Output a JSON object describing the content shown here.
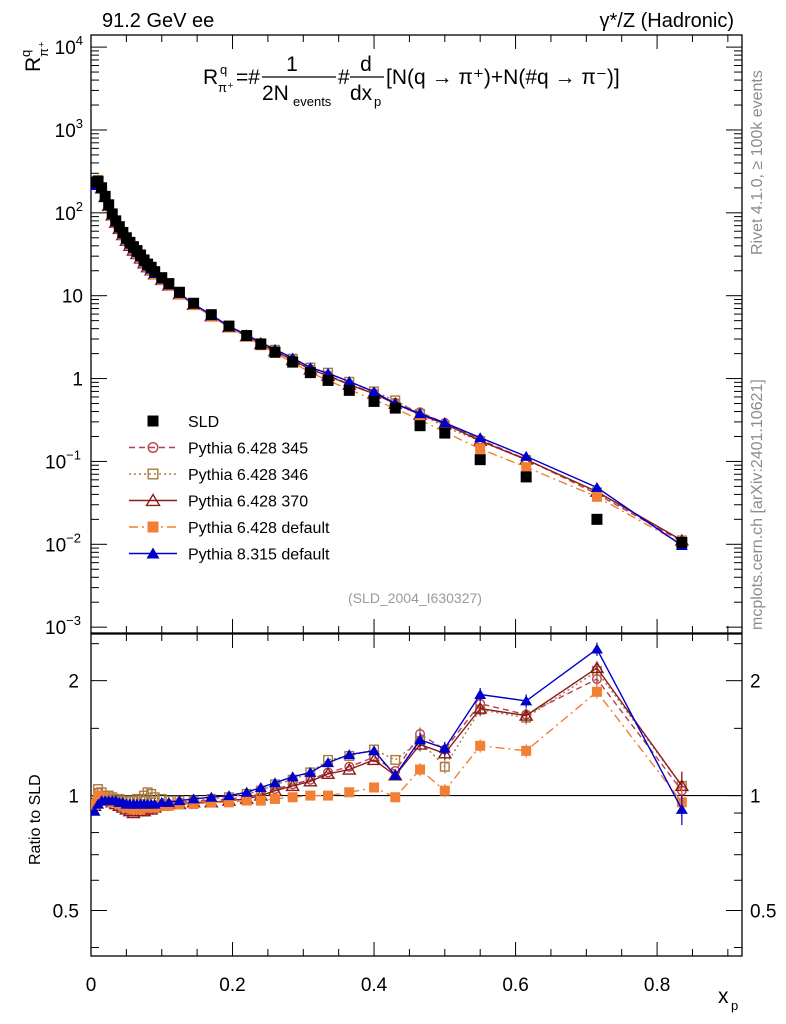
{
  "header": {
    "left": "91.2 GeV ee",
    "right": "γ*/Z (Hadronic)"
  },
  "side_labels": {
    "top": "Rivet 4.1.0, ≥ 100k events",
    "bottom": "mcplots.cern.ch [arXiv:2401.10621]"
  },
  "analysis_tag": "(SLD_2004_I630327)",
  "chart_data": {
    "type": "scatter",
    "title": "R^q_{π+} = 1/(2N_events) d/dx_p [N(q → π+) + N(q̄ → π-)]",
    "formula": {
      "r": "R",
      "r_sup": "q",
      "r_sub": "π⁺",
      "eq": "=#",
      "frac1_num": "1",
      "frac1_den": "2N",
      "frac1_den_sub": "events",
      "hash": "#",
      "frac2_num": "d",
      "frac2_den": "dx",
      "frac2_den_sub": "p",
      "bracket": "[N(q → π⁺)+N(#q → π⁻)]"
    },
    "ylabel": {
      "main": "R",
      "sup": "q",
      "sub": "π⁺"
    },
    "xlabel": {
      "main": "x",
      "sub": "p"
    },
    "ratio_ylabel": "Ratio to SLD",
    "xlim": [
      0,
      0.92
    ],
    "ylim_main": [
      0.00085,
      14000
    ],
    "ylim_ratio": [
      0.38,
      2.65
    ],
    "x_ticks": [
      0,
      0.2,
      0.4,
      0.6,
      0.8
    ],
    "x_tick_labels": [
      "0",
      "0.2",
      "0.4",
      "0.6",
      "0.8"
    ],
    "y_ticks_main": [
      {
        "v": 10000,
        "b": "10",
        "e": "4"
      },
      {
        "v": 1000,
        "b": "10",
        "e": "3"
      },
      {
        "v": 100,
        "b": "10",
        "e": "2"
      },
      {
        "v": 10,
        "b": "10",
        "e": ""
      },
      {
        "v": 1,
        "b": "1",
        "e": ""
      },
      {
        "v": 0.1,
        "b": "10",
        "e": "−1"
      },
      {
        "v": 0.01,
        "b": "10",
        "e": "−2"
      },
      {
        "v": 0.001,
        "b": "10",
        "e": "−3"
      }
    ],
    "ratio_ticks": [
      {
        "v": 0.5,
        "label": "0.5"
      },
      {
        "v": 1,
        "label": "1"
      },
      {
        "v": 2,
        "label": "2"
      }
    ],
    "x": [
      0.005,
      0.01,
      0.015,
      0.02,
      0.025,
      0.03,
      0.035,
      0.04,
      0.045,
      0.05,
      0.055,
      0.06,
      0.065,
      0.07,
      0.075,
      0.08,
      0.085,
      0.09,
      0.1,
      0.11,
      0.125,
      0.145,
      0.17,
      0.195,
      0.22,
      0.24,
      0.26,
      0.285,
      0.31,
      0.335,
      0.365,
      0.4,
      0.43,
      0.465,
      0.5,
      0.55,
      0.615,
      0.715,
      0.835
    ],
    "series": [
      {
        "name": "SLD",
        "color": "#000000",
        "marker": "square-filled",
        "dash": "none",
        "values": [
          235,
          240,
          200,
          158,
          125,
          97,
          80,
          68,
          58,
          50,
          44,
          39,
          35,
          31,
          27,
          24,
          22,
          19.5,
          16.5,
          14,
          11,
          8.1,
          5.9,
          4.3,
          3.3,
          2.6,
          2.08,
          1.58,
          1.18,
          0.95,
          0.72,
          0.53,
          0.44,
          0.27,
          0.22,
          0.105,
          0.065,
          0.02,
          0.0105
        ],
        "ratio": [
          1.0,
          1.0,
          1.0,
          1.0,
          1.0,
          1.0,
          1.0,
          1.0,
          1.0,
          1.0,
          1.0,
          1.0,
          1.0,
          1.0,
          1.0,
          1.0,
          1.0,
          1.0,
          1.0,
          1.0,
          1.0,
          1.0,
          1.0,
          1.0,
          1.0,
          1.0,
          1.0,
          1.0,
          1.0,
          1.0,
          1.0,
          1.0,
          1.0,
          1.0,
          1.0,
          1.0,
          1.0,
          1.0,
          1.0
        ]
      },
      {
        "name": "Pythia 6.428 345",
        "color": "#b5404f",
        "marker": "circle-open",
        "dash": "6,4",
        "ratio": [
          0.96,
          1.02,
          1.0,
          0.99,
          0.98,
          0.98,
          0.97,
          0.96,
          0.95,
          0.94,
          0.93,
          0.93,
          0.94,
          0.93,
          0.92,
          0.93,
          0.94,
          0.94,
          0.95,
          0.95,
          0.96,
          0.97,
          0.97,
          0.98,
          0.99,
          1.01,
          1.04,
          1.07,
          1.1,
          1.15,
          1.19,
          1.26,
          1.16,
          1.45,
          1.32,
          1.74,
          1.63,
          2.02,
          1.03
        ]
      },
      {
        "name": "Pythia 6.428 346",
        "color": "#a87b3c",
        "marker": "square-open",
        "dash": "2,3",
        "ratio": [
          0.97,
          1.04,
          1.02,
          1.0,
          1.0,
          0.99,
          0.98,
          0.98,
          0.97,
          0.97,
          0.97,
          0.97,
          0.98,
          0.98,
          1.0,
          1.02,
          1.01,
          0.99,
          0.98,
          0.97,
          0.97,
          0.97,
          0.98,
          0.99,
          1.01,
          1.03,
          1.07,
          1.1,
          1.15,
          1.24,
          1.27,
          1.32,
          1.24,
          1.39,
          1.19,
          1.68,
          1.6,
          2.12,
          1.06
        ]
      },
      {
        "name": "Pythia 6.428 370",
        "color": "#8b1a1a",
        "marker": "triangle-open",
        "dash": "none",
        "ratio": [
          0.94,
          0.99,
          0.99,
          0.98,
          0.97,
          0.96,
          0.95,
          0.94,
          0.93,
          0.92,
          0.91,
          0.9,
          0.91,
          0.91,
          0.91,
          0.92,
          0.92,
          0.93,
          0.94,
          0.95,
          0.95,
          0.96,
          0.96,
          0.97,
          0.98,
          1.0,
          1.03,
          1.06,
          1.09,
          1.14,
          1.17,
          1.24,
          1.13,
          1.36,
          1.29,
          1.69,
          1.62,
          2.16,
          1.06
        ]
      },
      {
        "name": "Pythia 6.428 default",
        "color": "#f27f33",
        "marker": "square-filled",
        "dash": "9,4,2,4",
        "ratio": [
          0.95,
          1.0,
          0.99,
          0.98,
          0.97,
          0.96,
          0.96,
          0.95,
          0.94,
          0.93,
          0.93,
          0.92,
          0.92,
          0.92,
          0.93,
          0.93,
          0.93,
          0.93,
          0.94,
          0.94,
          0.95,
          0.95,
          0.96,
          0.96,
          0.97,
          0.97,
          0.98,
          0.99,
          1.0,
          1.0,
          1.02,
          1.05,
          0.99,
          1.17,
          1.03,
          1.35,
          1.31,
          1.87,
          0.96
        ]
      },
      {
        "name": "Pythia 8.315 default",
        "color": "#0000cc",
        "marker": "triangle-filled",
        "dash": "none",
        "ratio": [
          0.91,
          0.95,
          0.97,
          0.97,
          0.97,
          0.97,
          0.97,
          0.96,
          0.96,
          0.95,
          0.95,
          0.95,
          0.95,
          0.95,
          0.95,
          0.95,
          0.95,
          0.95,
          0.96,
          0.96,
          0.97,
          0.98,
          0.99,
          1.0,
          1.02,
          1.05,
          1.08,
          1.12,
          1.15,
          1.22,
          1.28,
          1.31,
          1.13,
          1.4,
          1.33,
          1.84,
          1.77,
          2.42,
          0.92
        ]
      }
    ]
  }
}
